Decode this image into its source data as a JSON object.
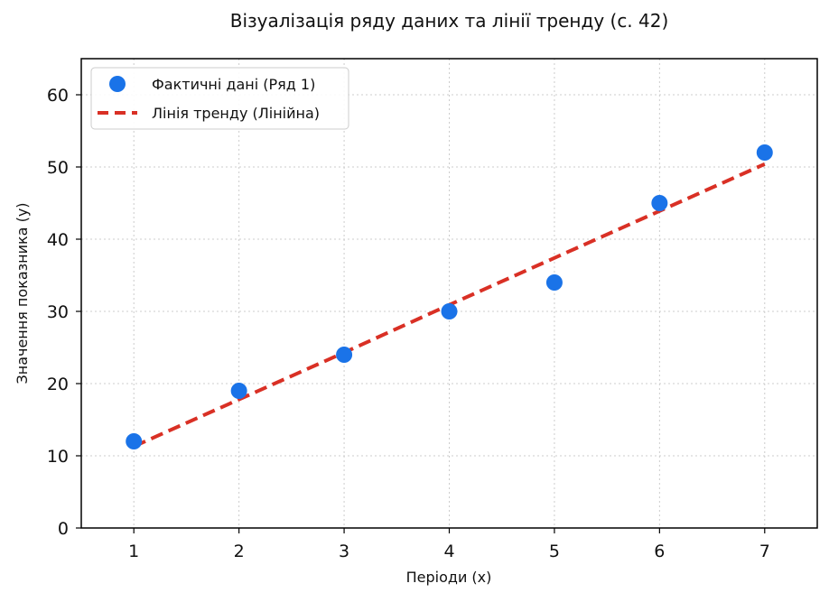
{
  "chart_data": {
    "type": "scatter",
    "title": "Візуалізація ряду даних та лінії тренду (с. 42)",
    "xlabel": "Періоди (x)",
    "ylabel": "Значення показника (y)",
    "x": [
      1,
      2,
      3,
      4,
      5,
      6,
      7
    ],
    "xlim": [
      0.5,
      7.5
    ],
    "ylim": [
      0,
      65
    ],
    "xticks": [
      "1",
      "2",
      "3",
      "4",
      "5",
      "6",
      "7"
    ],
    "yticks": [
      "0",
      "10",
      "20",
      "30",
      "40",
      "50",
      "60"
    ],
    "grid": true,
    "legend_position": "top-left",
    "series": [
      {
        "name": "Фактичні дані (Ряд 1)",
        "kind": "scatter",
        "color": "#1a73e8",
        "values": [
          12,
          19,
          24,
          30,
          34,
          45,
          52
        ]
      },
      {
        "name": "Лінія тренду (Лінійна)",
        "kind": "line",
        "style": "dashed",
        "color": "#d93025",
        "values": [
          11.3,
          17.8,
          24.3,
          30.9,
          37.4,
          43.9,
          50.4
        ]
      }
    ]
  }
}
